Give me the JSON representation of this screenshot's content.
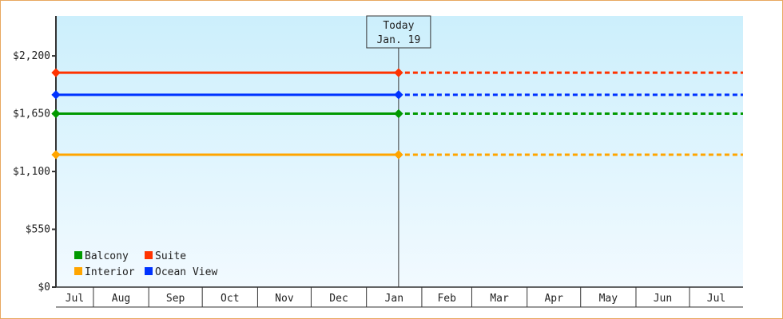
{
  "chart_data": {
    "type": "line",
    "y_ticks": [
      {
        "value": 0,
        "label": "$0"
      },
      {
        "value": 550,
        "label": "$550"
      },
      {
        "value": 1100,
        "label": "$1,100"
      },
      {
        "value": 1650,
        "label": "$1,650"
      },
      {
        "value": 2200,
        "label": "$2,200"
      }
    ],
    "ylim": [
      0,
      2580
    ],
    "x_range": [
      "Jul 11",
      "Jul 30"
    ],
    "x_months": [
      "Jul",
      "Aug",
      "Sep",
      "Oct",
      "Nov",
      "Dec",
      "Jan",
      "Feb",
      "Mar",
      "Apr",
      "May",
      "Jun",
      "Jul"
    ],
    "today": {
      "label": "Today",
      "date": "Jan. 19"
    },
    "series": [
      {
        "name": "Suite",
        "color": "#ff3300",
        "value": 2040,
        "from": "Jul 11",
        "to": "Jan 19",
        "projected_to": "Jul 30"
      },
      {
        "name": "Ocean View",
        "color": "#0033ff",
        "value": 1830,
        "from": "Jul 11",
        "to": "Jan 19",
        "projected_to": "Jul 30"
      },
      {
        "name": "Balcony",
        "color": "#009900",
        "value": 1650,
        "from": "Jul 11",
        "to": "Jan 19",
        "projected_to": "Jul 30"
      },
      {
        "name": "Interior",
        "color": "#ffa500",
        "value": 1260,
        "from": "Jul 11",
        "to": "Jan 19",
        "projected_to": "Jul 30"
      }
    ],
    "legend": {
      "placement": "bottom-left",
      "order": [
        "Balcony",
        "Suite",
        "Interior",
        "Ocean View"
      ]
    },
    "background": [
      "#cceffc",
      "#f2faff"
    ]
  }
}
